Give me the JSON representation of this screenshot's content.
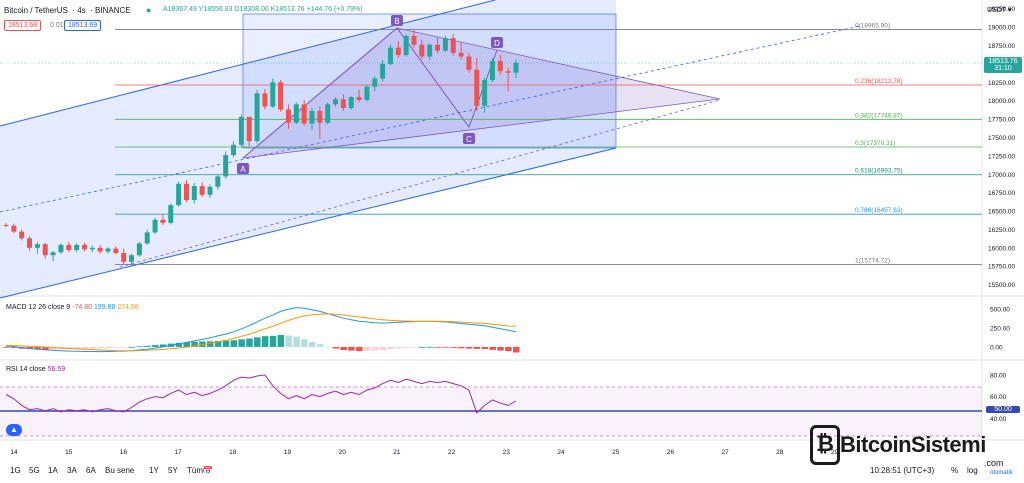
{
  "header": {
    "symbol": "Bitcoin / TetherUS",
    "interval": "4s",
    "exchange": "BINANCE",
    "ohlc": "A18367.49 Y18556.83 D18308.00 K18513.76 +144.76 (+0.79%)",
    "sell_price": "18513.68",
    "spread": "0.01",
    "buy_price": "18513.69",
    "currency": "USDT ▾",
    "last_price_tag": "18513.76",
    "countdown_tag": "31:10"
  },
  "colors": {
    "up": "#26a69a",
    "down": "#ef5350",
    "channel": "#2962ff",
    "pattern": "#7e57c2",
    "macd": "#2196f3",
    "signal": "#ff9800",
    "rsi": "#9c27b0"
  },
  "chart_data": [
    {
      "type": "candlestick",
      "title": "Bitcoin / TetherUS · 4s · BINANCE",
      "y_ticks": [
        "19250.00",
        "19000.00",
        "18750.00",
        "18500.00",
        "18250.00",
        "18000.00",
        "17750.00",
        "17500.00",
        "17250.00",
        "17000.00",
        "16750.00",
        "16500.00",
        "16250.00",
        "16000.00",
        "15750.00",
        "15500.00"
      ],
      "x_ticks": [
        "14",
        "15",
        "16",
        "17",
        "18",
        "19",
        "20",
        "21",
        "22",
        "23",
        "24",
        "25",
        "26",
        "27",
        "28",
        "29"
      ],
      "ylim": [
        15400,
        19300
      ],
      "candles": [
        [
          16310,
          16340,
          16280,
          16300
        ],
        [
          16300,
          16330,
          16200,
          16220
        ],
        [
          16220,
          16250,
          16100,
          16130
        ],
        [
          16130,
          16160,
          15960,
          16000
        ],
        [
          16000,
          16080,
          15920,
          16050
        ],
        [
          16050,
          16070,
          15850,
          15900
        ],
        [
          15900,
          15960,
          15820,
          15940
        ],
        [
          15940,
          16060,
          15920,
          16040
        ],
        [
          16040,
          16080,
          15940,
          15970
        ],
        [
          15970,
          16060,
          15940,
          16040
        ],
        [
          16040,
          16070,
          15950,
          15980
        ],
        [
          15980,
          16030,
          15940,
          16000
        ],
        [
          16000,
          16040,
          15920,
          15950
        ],
        [
          15950,
          16010,
          15920,
          15990
        ],
        [
          15990,
          16020,
          15910,
          15930
        ],
        [
          15930,
          15990,
          15780,
          15810
        ],
        [
          15810,
          15920,
          15780,
          15900
        ],
        [
          15900,
          16080,
          15880,
          16060
        ],
        [
          16060,
          16250,
          16040,
          16210
        ],
        [
          16210,
          16410,
          16190,
          16380
        ],
        [
          16380,
          16460,
          16310,
          16340
        ],
        [
          16340,
          16600,
          16320,
          16580
        ],
        [
          16580,
          16900,
          16560,
          16870
        ],
        [
          16870,
          16920,
          16620,
          16650
        ],
        [
          16650,
          16880,
          16600,
          16840
        ],
        [
          16840,
          16890,
          16690,
          16720
        ],
        [
          16720,
          16860,
          16680,
          16830
        ],
        [
          16830,
          17000,
          16790,
          16970
        ],
        [
          16970,
          17310,
          16940,
          17260
        ],
        [
          17260,
          17450,
          17230,
          17400
        ],
        [
          17400,
          17810,
          17370,
          17780
        ],
        [
          17780,
          17760,
          17380,
          17450
        ],
        [
          17450,
          18150,
          17420,
          18100
        ],
        [
          18100,
          18160,
          17880,
          17920
        ],
        [
          17920,
          18300,
          17900,
          18250
        ],
        [
          18250,
          18280,
          17850,
          17880
        ],
        [
          17880,
          17950,
          17620,
          17700
        ],
        [
          17700,
          17980,
          17680,
          17950
        ],
        [
          17950,
          18010,
          17660,
          17690
        ],
        [
          17690,
          17900,
          17600,
          17860
        ],
        [
          17860,
          17920,
          17480,
          17700
        ],
        [
          17700,
          17980,
          17680,
          17950
        ],
        [
          17950,
          18050,
          17920,
          18020
        ],
        [
          18020,
          18090,
          17860,
          17900
        ],
        [
          17900,
          18060,
          17880,
          18050
        ],
        [
          18050,
          18150,
          17980,
          18010
        ],
        [
          18010,
          18220,
          17990,
          18190
        ],
        [
          18190,
          18330,
          18130,
          18300
        ],
        [
          18300,
          18550,
          18260,
          18500
        ],
        [
          18500,
          18760,
          18480,
          18720
        ],
        [
          18720,
          18810,
          18580,
          18620
        ],
        [
          18620,
          18900,
          18600,
          18880
        ],
        [
          18880,
          18960,
          18720,
          18760
        ],
        [
          18760,
          18830,
          18560,
          18600
        ],
        [
          18600,
          18780,
          18550,
          18760
        ],
        [
          18760,
          18850,
          18640,
          18680
        ],
        [
          18680,
          18880,
          18660,
          18850
        ],
        [
          18850,
          18910,
          18610,
          18650
        ],
        [
          18650,
          18800,
          18560,
          18600
        ],
        [
          18600,
          18650,
          18380,
          18420
        ],
        [
          18420,
          18580,
          17860,
          17930
        ],
        [
          17930,
          18310,
          17840,
          18280
        ],
        [
          18280,
          18580,
          18250,
          18540
        ],
        [
          18540,
          18620,
          18350,
          18400
        ],
        [
          18400,
          18450,
          18130,
          18380
        ],
        [
          18380,
          18560,
          18310,
          18514
        ]
      ],
      "harmonic_points": [
        "A",
        "B",
        "C",
        "D"
      ],
      "fibonacci": [
        {
          "label": "0(18965.90)",
          "color": "#787b86",
          "level": 18965.9
        },
        {
          "label": "0.236(18212.78)",
          "color": "#ef5350",
          "level": 18212.78
        },
        {
          "label": "0.382(17746.87)",
          "color": "#4caf50",
          "level": 17746.87
        },
        {
          "label": "0.5(17370.31)",
          "color": "#4caf50",
          "level": 17370.31
        },
        {
          "label": "0.618(16993.75)",
          "color": "#089981",
          "level": 16993.75
        },
        {
          "label": "0.786(16457.63)",
          "color": "#2196f3",
          "level": 16457.63
        },
        {
          "label": "1(15774.72)",
          "color": "#787b86",
          "level": 15774.72
        }
      ]
    },
    {
      "type": "macd",
      "title": "MACD 12 26 close 9",
      "legend_values": [
        "-74.80",
        "199.88",
        "274.68"
      ],
      "y_ticks": [
        "500.00",
        "250.00",
        "0.00"
      ],
      "ylim": [
        -120,
        620
      ],
      "macd": [
        10,
        5,
        -10,
        -20,
        -30,
        -40,
        -45,
        -50,
        -55,
        -58,
        -60,
        -60,
        -62,
        -60,
        -58,
        -55,
        -50,
        -40,
        -30,
        -15,
        0,
        20,
        40,
        60,
        80,
        100,
        120,
        145,
        170,
        200,
        240,
        280,
        330,
        380,
        420,
        470,
        500,
        520,
        510,
        490,
        470,
        440,
        410,
        380,
        360,
        340,
        330,
        320,
        315,
        320,
        325,
        330,
        335,
        340,
        340,
        335,
        330,
        320,
        310,
        300,
        290,
        280,
        260,
        240,
        220,
        200
      ],
      "signal": [
        20,
        18,
        14,
        9,
        4,
        -2,
        -8,
        -14,
        -20,
        -26,
        -31,
        -36,
        -41,
        -45,
        -48,
        -50,
        -50,
        -48,
        -45,
        -40,
        -33,
        -24,
        -14,
        -2,
        12,
        28,
        46,
        66,
        88,
        112,
        140,
        170,
        203,
        238,
        274,
        313,
        350,
        384,
        409,
        425,
        434,
        436,
        431,
        421,
        409,
        395,
        382,
        369,
        358,
        350,
        345,
        342,
        340,
        340,
        340,
        339,
        337,
        333,
        328,
        322,
        316,
        309,
        299,
        288,
        276,
        274
      ]
    },
    {
      "type": "rsi",
      "title": "RSI 14 close",
      "legend_value": "56.59",
      "y_ticks": [
        "80.00",
        "60.00",
        "40.00"
      ],
      "level_tag": "50.00",
      "ylim": [
        22,
        90
      ],
      "values": [
        62,
        58,
        52,
        48,
        49,
        47,
        49,
        46,
        48,
        47,
        48,
        46,
        48,
        49,
        47,
        46,
        50,
        55,
        58,
        60,
        59,
        63,
        66,
        62,
        64,
        61,
        63,
        66,
        70,
        75,
        78,
        77,
        79,
        80,
        70,
        63,
        58,
        61,
        58,
        62,
        60,
        63,
        65,
        62,
        64,
        62,
        66,
        68,
        72,
        75,
        73,
        76,
        74,
        72,
        74,
        73,
        74,
        72,
        70,
        66,
        45,
        52,
        57,
        54,
        52,
        56
      ]
    }
  ],
  "time_axis_right": {
    "clock": "10:28:51 (UTC+3)",
    "percent": "%",
    "log": "log",
    "auto": "otomatik"
  },
  "toolbar": {
    "ranges": [
      "1G",
      "5G",
      "1A",
      "3A",
      "6A",
      "Bu sene",
      "1Y",
      "5Y",
      "Tümü"
    ],
    "calendar": "calendar-icon"
  },
  "watermark": {
    "brand": "BitcoinSistemi",
    "suffix": ".com"
  }
}
